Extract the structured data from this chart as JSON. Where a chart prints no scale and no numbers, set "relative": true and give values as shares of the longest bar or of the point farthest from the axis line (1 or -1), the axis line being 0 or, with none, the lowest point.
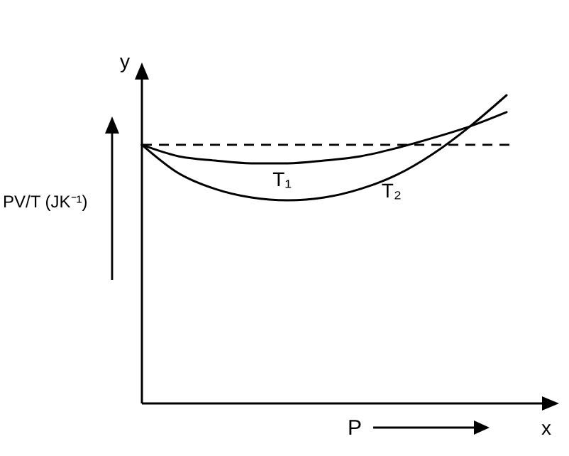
{
  "chart_data": {
    "type": "line",
    "relative": true,
    "xlabel": "P",
    "ylabel": "PV/T (JK⁻¹)",
    "annotations": [
      "x",
      "y"
    ],
    "categories": [
      null,
      null,
      null,
      null,
      null,
      null,
      null,
      null,
      null,
      null,
      null
    ],
    "series": [
      {
        "name": "T₁",
        "color": "#000000",
        "values": [
          0.839,
          0.802,
          0.788,
          0.779,
          0.779,
          0.788,
          0.802,
          0.829,
          0.862,
          0.899,
          0.945
        ]
      },
      {
        "name": "T₂",
        "color": "#000000",
        "values": [
          0.839,
          0.747,
          0.696,
          0.668,
          0.659,
          0.668,
          0.696,
          0.742,
          0.811,
          0.899,
          1
        ]
      }
    ],
    "ref_lines": [
      {
        "axis": "y",
        "value": 0.839,
        "color": "#000000",
        "line_style": "dashed"
      }
    ],
    "legend": false,
    "marker": "none",
    "line_style": "solid"
  }
}
